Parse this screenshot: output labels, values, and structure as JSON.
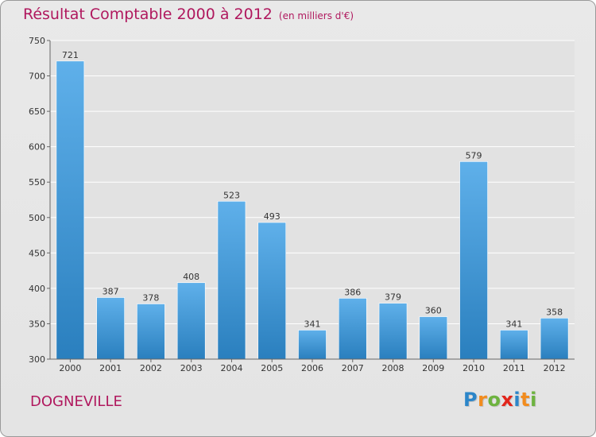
{
  "header": {
    "title": "Résultat Comptable 2000 à 2012",
    "unit": "(en milliers d'€)"
  },
  "commune": "DOGNEVILLE",
  "brand": {
    "letters": [
      "P",
      "r",
      "o",
      "x",
      "i",
      "t",
      "i"
    ],
    "colors": [
      "#2c86c9",
      "#f28c1e",
      "#6db33f",
      "#e2261c",
      "#2c86c9",
      "#f28c1e",
      "#6db33f"
    ]
  },
  "colors": {
    "title": "#b0185e",
    "bar_top": "#5fb0ea",
    "bar_bottom": "#2a7fbe",
    "grid": "#ffffff",
    "axis": "#666666"
  },
  "chart_data": {
    "type": "bar",
    "title": "Résultat Comptable 2000 à 2012",
    "ylabel": "en milliers d'€",
    "categories": [
      "2000",
      "2001",
      "2002",
      "2003",
      "2004",
      "2005",
      "2006",
      "2007",
      "2008",
      "2009",
      "2010",
      "2011",
      "2012"
    ],
    "values": [
      721,
      387,
      378,
      408,
      523,
      493,
      341,
      386,
      379,
      360,
      579,
      341,
      358
    ],
    "ylim": [
      300,
      750
    ],
    "yticks": [
      300,
      350,
      400,
      450,
      500,
      550,
      600,
      650,
      700,
      750
    ],
    "grid": true
  }
}
